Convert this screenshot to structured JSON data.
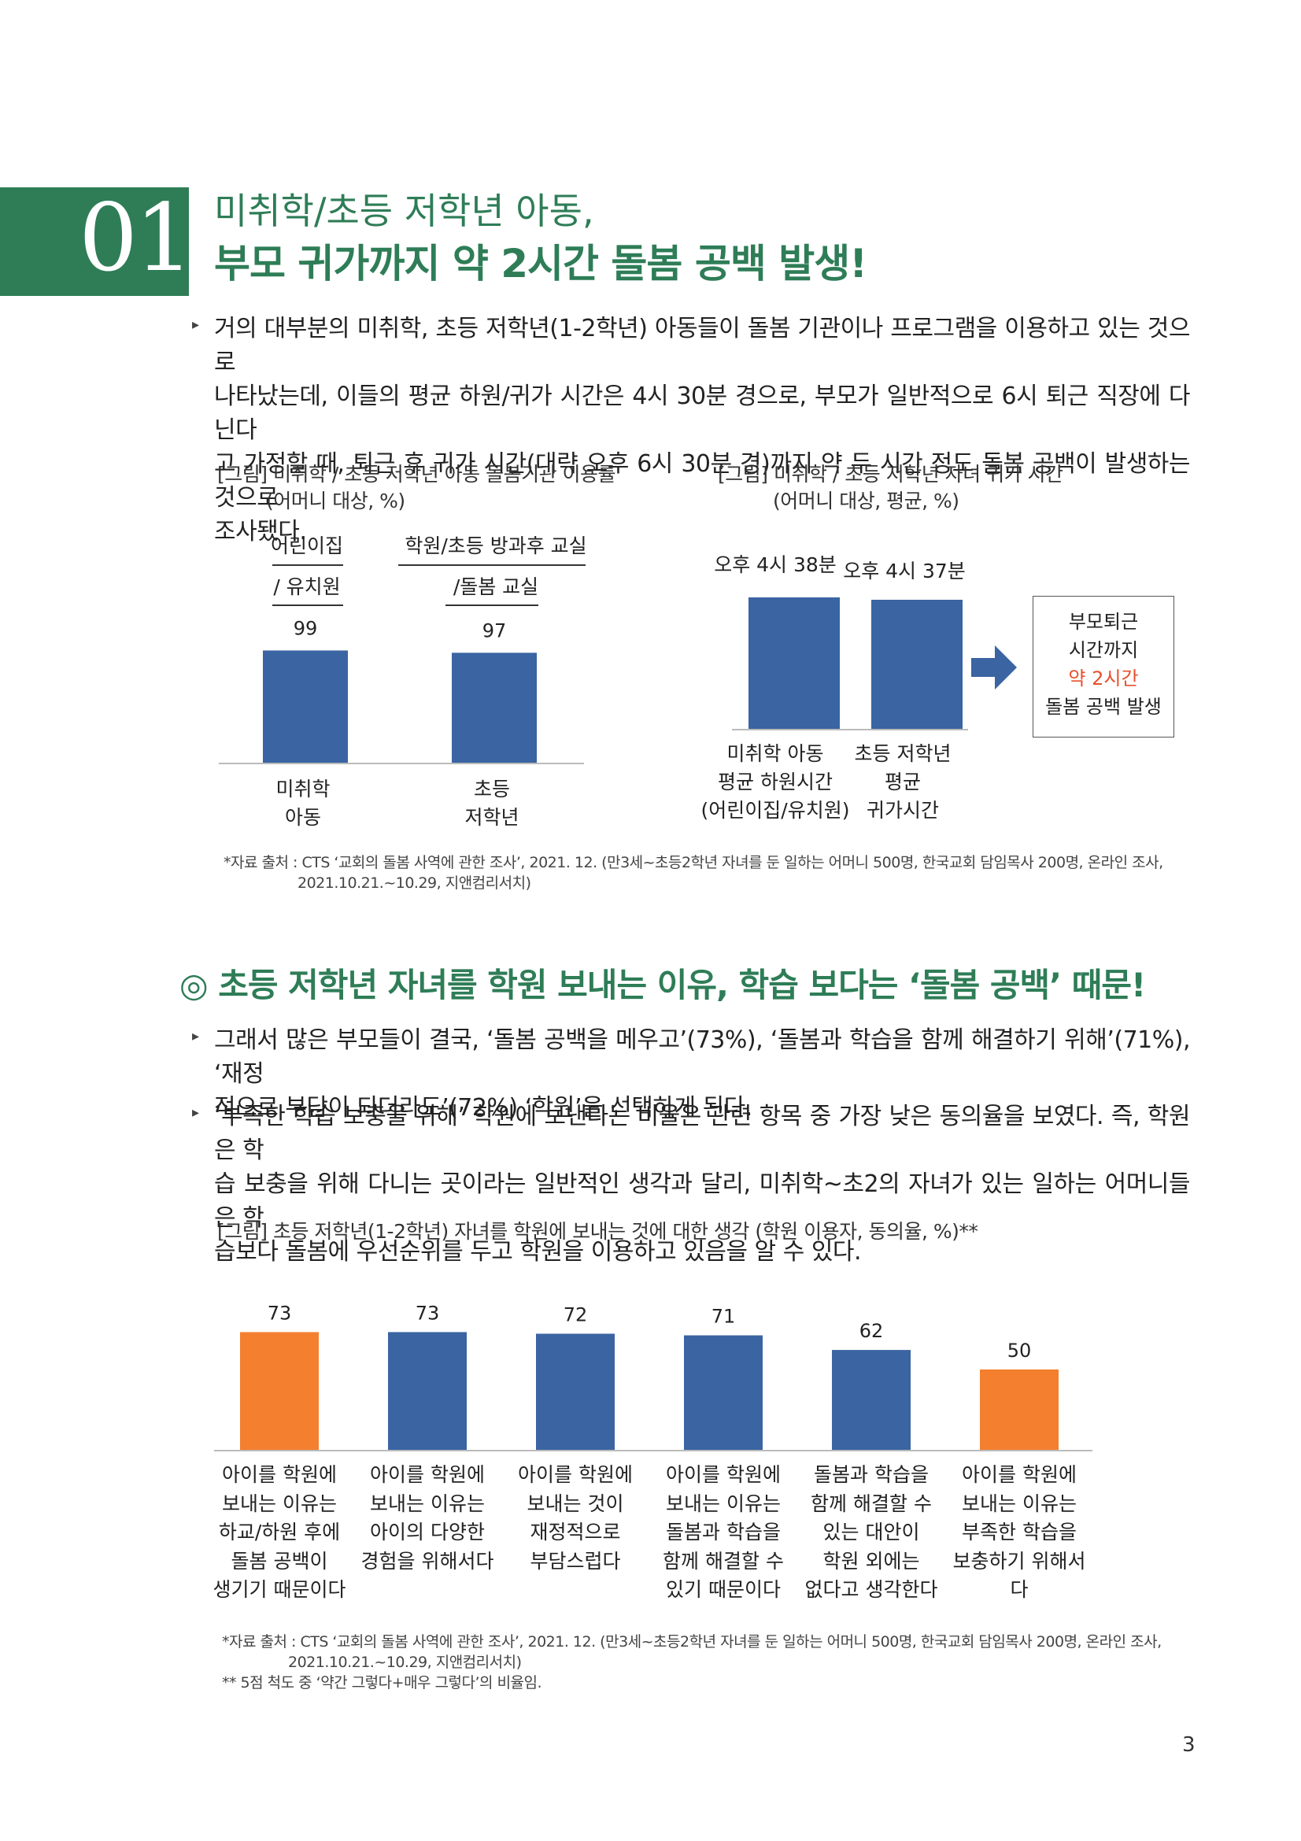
{
  "section": {
    "number": "01",
    "subtitle": "미취학/초등 저학년 아동,",
    "title": "부모 귀가까지 약 2시간 돌봄 공백 발생!"
  },
  "intro_paragraph": {
    "lines": [
      "거의 대부분의 미취학, 초등 저학년(1-2학년) 아동들이 돌봄 기관이나 프로그램을 이용하고 있는 것으로",
      "나타났는데, 이들의 평균 하원/귀가 시간은 4시 30분 경으로, 부모가 일반적으로 6시 퇴근 직장에 다닌다",
      "고 가정할 때, 퇴근 후 귀가 시간(대략 오후 6시 30분 경)까지 약 두 시간 정도 돌봄 공백이 발생하는 것으로",
      "조사됐다."
    ]
  },
  "fig1": {
    "caption": "[그림] 미취학 / 초등 저학년 아동 돌봄기관 이용률",
    "caption2": "(어머니 대상, %)",
    "header1": [
      "어린이집",
      "/ 유치원"
    ],
    "header2": [
      "학원/초등 방과후 교실",
      "/돌봄 교실"
    ],
    "categories": [
      [
        "미취학",
        "아동"
      ],
      [
        "초등",
        "저학년"
      ]
    ]
  },
  "fig2": {
    "caption": "[그림] 미취학 / 초등 저학년 자녀 귀가 시간",
    "caption2": "(어머니 대상, 평균, %)",
    "labels": [
      "오후 4시 38분",
      "오후 4시 37분"
    ],
    "categories": [
      [
        "미취학 아동",
        "평균 하원시간",
        "(어린이집/유치원)"
      ],
      [
        "초등 저학년",
        "평균",
        "귀가시간"
      ]
    ],
    "box": [
      "부모퇴근",
      "시간까지",
      "약 2시간",
      "돌봄 공백 발생"
    ]
  },
  "source1": {
    "line1": "*자료 출처 : CTS ‘교회의 돌봄 사역에 관한 조사’, 2021. 12. (만3세~초등2학년 자녀를 둔 일하는 어머니 500명, 한국교회 담임목사 200명, 온라인 조사,",
    "line2": "2021.10.21.~10.29, 지앤컴리서치)"
  },
  "section2": {
    "title": "◎ 초등 저학년 자녀를 학원 보내는 이유, 학습 보다는 ‘돌봄 공백’ 때문!",
    "para1": [
      "그래서 많은 부모들이 결국, ‘돌봄 공백을 메우고’(73%), ‘돌봄과 학습을 함께 해결하기 위해’(71%), ‘재정",
      "적으로 부담이 되더라도’(72%) ‘학원’을 선택하게 된다."
    ],
    "para2": [
      "‘부족한 학습 보충을 위해’ 학원에 보낸다는 비율은 관련 항목 중 가장 낮은 동의율을 보였다. 즉, 학원은 학",
      "습 보충을 위해 다니는 곳이라는 일반적인 생각과 달리, 미취학~초2의 자녀가 있는 일하는 어머니들은 학",
      "습보다 돌봄에 우선순위를 두고 학원을 이용하고 있음을 알 수 있다."
    ]
  },
  "fig3": {
    "caption": "[그림] 초등 저학년(1-2학년) 자녀를 학원에 보내는 것에 대한 생각 (학원 이용자, 동의율, %)**",
    "categories": [
      [
        "아이를 학원에",
        "보내는 이유는",
        "하교/하원 후에",
        "돌봄 공백이",
        "생기기 때문이다"
      ],
      [
        "아이를 학원에",
        "보내는 이유는",
        "아이의 다양한",
        "경험을 위해서다"
      ],
      [
        "아이를 학원에",
        "보내는 것이",
        "재정적으로",
        "부담스럽다"
      ],
      [
        "아이를 학원에",
        "보내는 이유는",
        "돌봄과 학습을",
        "함께 해결할 수",
        "있기 때문이다"
      ],
      [
        "돌봄과 학습을",
        "함께 해결할 수",
        "있는 대안이",
        "학원 외에는",
        "없다고 생각한다"
      ],
      [
        "아이를 학원에",
        "보내는 이유는",
        "부족한 학습을",
        "보충하기 위해서다"
      ]
    ]
  },
  "source2": {
    "line1": "*자료 출처 : CTS ‘교회의 돌봄 사역에 관한 조사’, 2021. 12. (만3세~초등2학년 자녀를 둔 일하는 어머니 500명, 한국교회 담임목사 200명, 온라인 조사,",
    "line2": "2021.10.21.~10.29, 지앤컴리서치)",
    "line3": "** 5점 척도 중 ‘약간 그렇다+매우 그렇다’의 비율임."
  },
  "page_number": "3",
  "colors": {
    "green": "#2e7d57",
    "blue": "#3a64a2",
    "orange": "#f47f2f",
    "red": "#e8502b"
  },
  "chart_data": [
    {
      "type": "bar",
      "title": "[그림] 미취학 / 초등 저학년 아동 돌봄기관 이용률",
      "categories": [
        "미취학 아동",
        "초등 저학년"
      ],
      "values": [
        99,
        97
      ],
      "ylim": [
        0,
        100
      ]
    },
    {
      "type": "bar",
      "title": "[그림] 미취학 / 초등 저학년 자녀 귀가 시간",
      "categories": [
        "미취학 아동 평균 하원시간 (어린이집/유치원)",
        "초등 저학년 평균 귀가시간"
      ],
      "values": [
        "오후 4시 38분",
        "오후 4시 37분"
      ]
    },
    {
      "type": "bar",
      "title": "[그림] 초등 저학년(1-2학년) 자녀를 학원에 보내는 것에 대한 생각 (학원 이용자, 동의율, %)**",
      "categories": [
        "아이를 학원에 보내는 이유는 하교/하원 후에 돌봄 공백이 생기기 때문이다",
        "아이를 학원에 보내는 이유는 아이의 다양한 경험을 위해서다",
        "아이를 학원에 보내는 것이 재정적으로 부담스럽다",
        "아이를 학원에 보내는 이유는 돌봄과 학습을 함께 해결할 수 있기 때문이다",
        "돌봄과 학습을 함께 해결할 수 있는 대안이 학원 외에는 없다고 생각한다",
        "아이를 학원에 보내는 이유는 부족한 학습을 보충하기 위해서다"
      ],
      "values": [
        73,
        73,
        72,
        71,
        62,
        50
      ],
      "ylim": [
        0,
        80
      ],
      "highlight": [
        "#f47f2f",
        "#3a64a2",
        "#3a64a2",
        "#3a64a2",
        "#3a64a2",
        "#f47f2f"
      ]
    }
  ]
}
